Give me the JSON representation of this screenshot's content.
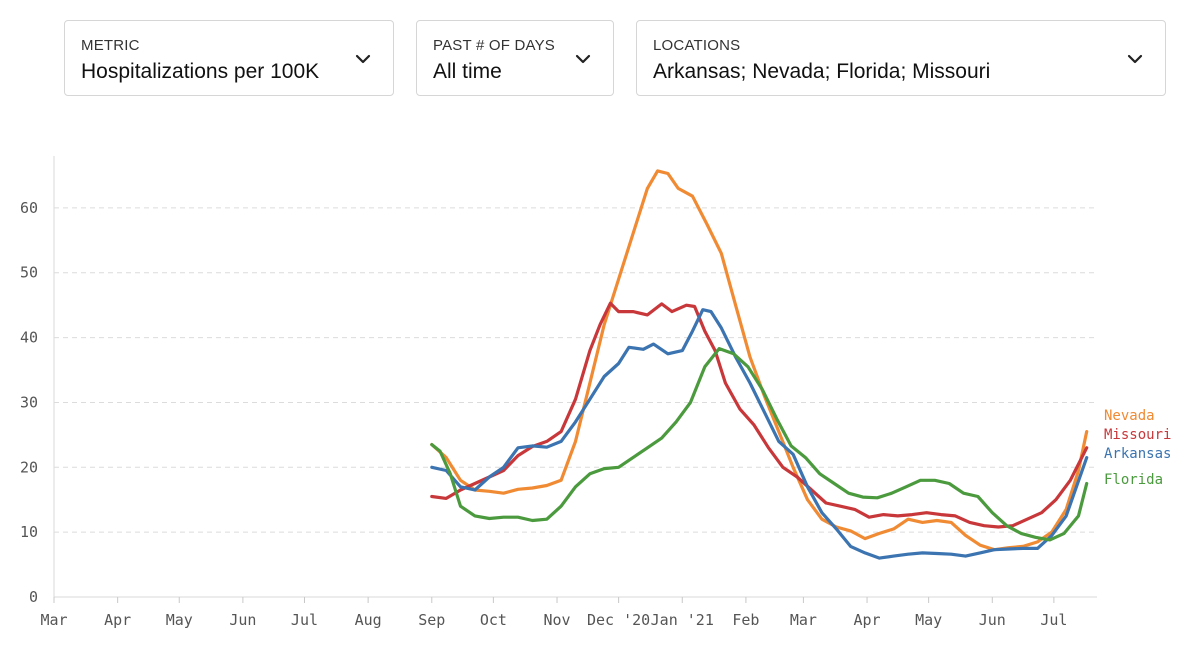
{
  "filters": {
    "metric": {
      "label": "METRIC",
      "value": "Hospitalizations per 100K"
    },
    "days": {
      "label": "PAST # OF DAYS",
      "value": "All time"
    },
    "locations": {
      "label": "LOCATIONS",
      "value": "Arkansas; Nevada; Florida; Missouri"
    }
  },
  "chart_data": {
    "type": "line",
    "x_unit": "date",
    "xlim": [
      "2020-03-01",
      "2021-07-22"
    ],
    "ylim": [
      0,
      68
    ],
    "yticks": [
      0,
      10,
      20,
      30,
      40,
      50,
      60
    ],
    "grid": "horizontal dashed",
    "xticks": [
      {
        "label": "Mar",
        "date": "2020-03-01"
      },
      {
        "label": "Apr",
        "date": "2020-04-01"
      },
      {
        "label": "May",
        "date": "2020-05-01"
      },
      {
        "label": "Jun",
        "date": "2020-06-01"
      },
      {
        "label": "Jul",
        "date": "2020-07-01"
      },
      {
        "label": "Aug",
        "date": "2020-08-01"
      },
      {
        "label": "Sep",
        "date": "2020-09-01"
      },
      {
        "label": "Oct",
        "date": "2020-10-01"
      },
      {
        "label": "Nov",
        "date": "2020-11-01"
      },
      {
        "label": "Dec '20",
        "date": "2020-12-01"
      },
      {
        "label": "Jan '21",
        "date": "2021-01-01"
      },
      {
        "label": "Feb",
        "date": "2021-02-01"
      },
      {
        "label": "Mar",
        "date": "2021-03-01"
      },
      {
        "label": "Apr",
        "date": "2021-04-01"
      },
      {
        "label": "May",
        "date": "2021-05-01"
      },
      {
        "label": "Jun",
        "date": "2021-06-01"
      },
      {
        "label": "Jul",
        "date": "2021-07-01"
      }
    ],
    "legend_position": "right, at line ends",
    "series": [
      {
        "name": "Nevada",
        "color": "#f08a33",
        "points": [
          [
            "2020-09-01",
            23.5
          ],
          [
            "2020-09-08",
            21.5
          ],
          [
            "2020-09-15",
            18
          ],
          [
            "2020-09-22",
            16.5
          ],
          [
            "2020-09-29",
            16.3
          ],
          [
            "2020-10-06",
            16
          ],
          [
            "2020-10-13",
            16.6
          ],
          [
            "2020-10-20",
            16.8
          ],
          [
            "2020-10-27",
            17.2
          ],
          [
            "2020-11-03",
            18
          ],
          [
            "2020-11-10",
            24
          ],
          [
            "2020-11-17",
            33
          ],
          [
            "2020-11-24",
            42
          ],
          [
            "2020-12-01",
            49
          ],
          [
            "2020-12-08",
            56
          ],
          [
            "2020-12-15",
            63
          ],
          [
            "2020-12-20",
            65.7
          ],
          [
            "2020-12-25",
            65.3
          ],
          [
            "2020-12-30",
            63
          ],
          [
            "2021-01-06",
            61.8
          ],
          [
            "2021-01-13",
            57.5
          ],
          [
            "2021-01-20",
            53
          ],
          [
            "2021-01-27",
            45
          ],
          [
            "2021-02-03",
            37
          ],
          [
            "2021-02-10",
            31
          ],
          [
            "2021-02-17",
            25.5
          ],
          [
            "2021-02-24",
            20
          ],
          [
            "2021-03-03",
            15
          ],
          [
            "2021-03-10",
            12
          ],
          [
            "2021-03-17",
            10.8
          ],
          [
            "2021-03-24",
            10.2
          ],
          [
            "2021-03-31",
            9
          ],
          [
            "2021-04-07",
            9.8
          ],
          [
            "2021-04-14",
            10.5
          ],
          [
            "2021-04-21",
            12
          ],
          [
            "2021-04-28",
            11.5
          ],
          [
            "2021-05-05",
            11.8
          ],
          [
            "2021-05-12",
            11.5
          ],
          [
            "2021-05-19",
            9.5
          ],
          [
            "2021-05-26",
            8
          ],
          [
            "2021-06-02",
            7.3
          ],
          [
            "2021-06-09",
            7.6
          ],
          [
            "2021-06-16",
            7.8
          ],
          [
            "2021-06-23",
            8.5
          ],
          [
            "2021-06-30",
            10
          ],
          [
            "2021-07-07",
            13.5
          ],
          [
            "2021-07-13",
            19.5
          ],
          [
            "2021-07-17",
            25.5
          ]
        ]
      },
      {
        "name": "Missouri",
        "color": "#c8373a",
        "points": [
          [
            "2020-09-01",
            15.5
          ],
          [
            "2020-09-08",
            15.2
          ],
          [
            "2020-09-15",
            16.5
          ],
          [
            "2020-09-22",
            17.5
          ],
          [
            "2020-09-29",
            18.5
          ],
          [
            "2020-10-06",
            19.5
          ],
          [
            "2020-10-13",
            21.8
          ],
          [
            "2020-10-20",
            23.2
          ],
          [
            "2020-10-27",
            24
          ],
          [
            "2020-11-03",
            25.5
          ],
          [
            "2020-11-10",
            30.5
          ],
          [
            "2020-11-17",
            38
          ],
          [
            "2020-11-22",
            42
          ],
          [
            "2020-11-27",
            45.3
          ],
          [
            "2020-12-01",
            44
          ],
          [
            "2020-12-08",
            44
          ],
          [
            "2020-12-15",
            43.5
          ],
          [
            "2020-12-22",
            45.2
          ],
          [
            "2020-12-27",
            44
          ],
          [
            "2021-01-03",
            45
          ],
          [
            "2021-01-07",
            44.8
          ],
          [
            "2021-01-12",
            41
          ],
          [
            "2021-01-17",
            38
          ],
          [
            "2021-01-22",
            33
          ],
          [
            "2021-01-29",
            29
          ],
          [
            "2021-02-05",
            26.5
          ],
          [
            "2021-02-12",
            23
          ],
          [
            "2021-02-19",
            20
          ],
          [
            "2021-02-26",
            18.5
          ],
          [
            "2021-03-05",
            16.5
          ],
          [
            "2021-03-12",
            14.5
          ],
          [
            "2021-03-19",
            14
          ],
          [
            "2021-03-26",
            13.5
          ],
          [
            "2021-04-02",
            12.3
          ],
          [
            "2021-04-09",
            12.7
          ],
          [
            "2021-04-16",
            12.5
          ],
          [
            "2021-04-23",
            12.7
          ],
          [
            "2021-04-30",
            13
          ],
          [
            "2021-05-07",
            12.7
          ],
          [
            "2021-05-14",
            12.5
          ],
          [
            "2021-05-21",
            11.5
          ],
          [
            "2021-05-28",
            11
          ],
          [
            "2021-06-04",
            10.8
          ],
          [
            "2021-06-11",
            11
          ],
          [
            "2021-06-18",
            12
          ],
          [
            "2021-06-25",
            13
          ],
          [
            "2021-07-02",
            15
          ],
          [
            "2021-07-09",
            18
          ],
          [
            "2021-07-17",
            23
          ]
        ]
      },
      {
        "name": "Arkansas",
        "color": "#3b74b0",
        "points": [
          [
            "2020-09-01",
            20
          ],
          [
            "2020-09-08",
            19.5
          ],
          [
            "2020-09-15",
            17
          ],
          [
            "2020-09-22",
            16.5
          ],
          [
            "2020-09-29",
            18.5
          ],
          [
            "2020-10-06",
            20
          ],
          [
            "2020-10-13",
            23
          ],
          [
            "2020-10-20",
            23.3
          ],
          [
            "2020-10-27",
            23.1
          ],
          [
            "2020-11-03",
            24
          ],
          [
            "2020-11-10",
            27
          ],
          [
            "2020-11-17",
            30.5
          ],
          [
            "2020-11-24",
            34
          ],
          [
            "2020-12-01",
            36
          ],
          [
            "2020-12-06",
            38.5
          ],
          [
            "2020-12-13",
            38.2
          ],
          [
            "2020-12-18",
            39
          ],
          [
            "2020-12-25",
            37.5
          ],
          [
            "2021-01-01",
            38
          ],
          [
            "2021-01-06",
            41
          ],
          [
            "2021-01-11",
            44.3
          ],
          [
            "2021-01-15",
            44
          ],
          [
            "2021-01-20",
            41.5
          ],
          [
            "2021-01-27",
            37
          ],
          [
            "2021-02-03",
            33
          ],
          [
            "2021-02-10",
            28.5
          ],
          [
            "2021-02-17",
            24
          ],
          [
            "2021-02-24",
            22
          ],
          [
            "2021-03-03",
            17
          ],
          [
            "2021-03-10",
            13
          ],
          [
            "2021-03-17",
            10.5
          ],
          [
            "2021-03-24",
            7.8
          ],
          [
            "2021-03-31",
            6.8
          ],
          [
            "2021-04-07",
            6
          ],
          [
            "2021-04-14",
            6.3
          ],
          [
            "2021-04-21",
            6.6
          ],
          [
            "2021-04-28",
            6.8
          ],
          [
            "2021-05-05",
            6.7
          ],
          [
            "2021-05-12",
            6.6
          ],
          [
            "2021-05-19",
            6.3
          ],
          [
            "2021-05-26",
            6.8
          ],
          [
            "2021-06-02",
            7.3
          ],
          [
            "2021-06-09",
            7.4
          ],
          [
            "2021-06-16",
            7.5
          ],
          [
            "2021-06-23",
            7.5
          ],
          [
            "2021-06-30",
            9.5
          ],
          [
            "2021-07-07",
            12.5
          ],
          [
            "2021-07-17",
            21.5
          ]
        ]
      },
      {
        "name": "Florida",
        "color": "#4b9a3e",
        "points": [
          [
            "2020-09-01",
            23.5
          ],
          [
            "2020-09-05",
            22.5
          ],
          [
            "2020-09-10",
            19
          ],
          [
            "2020-09-15",
            14
          ],
          [
            "2020-09-22",
            12.5
          ],
          [
            "2020-09-29",
            12.1
          ],
          [
            "2020-10-06",
            12.3
          ],
          [
            "2020-10-13",
            12.3
          ],
          [
            "2020-10-20",
            11.8
          ],
          [
            "2020-10-27",
            12
          ],
          [
            "2020-11-03",
            14
          ],
          [
            "2020-11-10",
            17
          ],
          [
            "2020-11-17",
            19
          ],
          [
            "2020-11-24",
            19.8
          ],
          [
            "2020-12-01",
            20
          ],
          [
            "2020-12-08",
            21.5
          ],
          [
            "2020-12-15",
            23
          ],
          [
            "2020-12-22",
            24.5
          ],
          [
            "2020-12-29",
            27
          ],
          [
            "2021-01-05",
            30
          ],
          [
            "2021-01-12",
            35.5
          ],
          [
            "2021-01-19",
            38.3
          ],
          [
            "2021-01-26",
            37.5
          ],
          [
            "2021-02-02",
            35.5
          ],
          [
            "2021-02-09",
            32
          ],
          [
            "2021-02-16",
            27.5
          ],
          [
            "2021-02-23",
            23.3
          ],
          [
            "2021-03-02",
            21.5
          ],
          [
            "2021-03-09",
            19
          ],
          [
            "2021-03-16",
            17.5
          ],
          [
            "2021-03-23",
            16
          ],
          [
            "2021-03-30",
            15.4
          ],
          [
            "2021-04-06",
            15.3
          ],
          [
            "2021-04-13",
            16
          ],
          [
            "2021-04-20",
            17
          ],
          [
            "2021-04-27",
            18
          ],
          [
            "2021-05-04",
            18
          ],
          [
            "2021-05-11",
            17.5
          ],
          [
            "2021-05-18",
            16
          ],
          [
            "2021-05-25",
            15.5
          ],
          [
            "2021-06-01",
            13
          ],
          [
            "2021-06-08",
            11
          ],
          [
            "2021-06-15",
            9.8
          ],
          [
            "2021-06-22",
            9.2
          ],
          [
            "2021-06-29",
            8.8
          ],
          [
            "2021-07-06",
            9.8
          ],
          [
            "2021-07-13",
            12.5
          ],
          [
            "2021-07-17",
            17.5
          ]
        ]
      }
    ]
  }
}
